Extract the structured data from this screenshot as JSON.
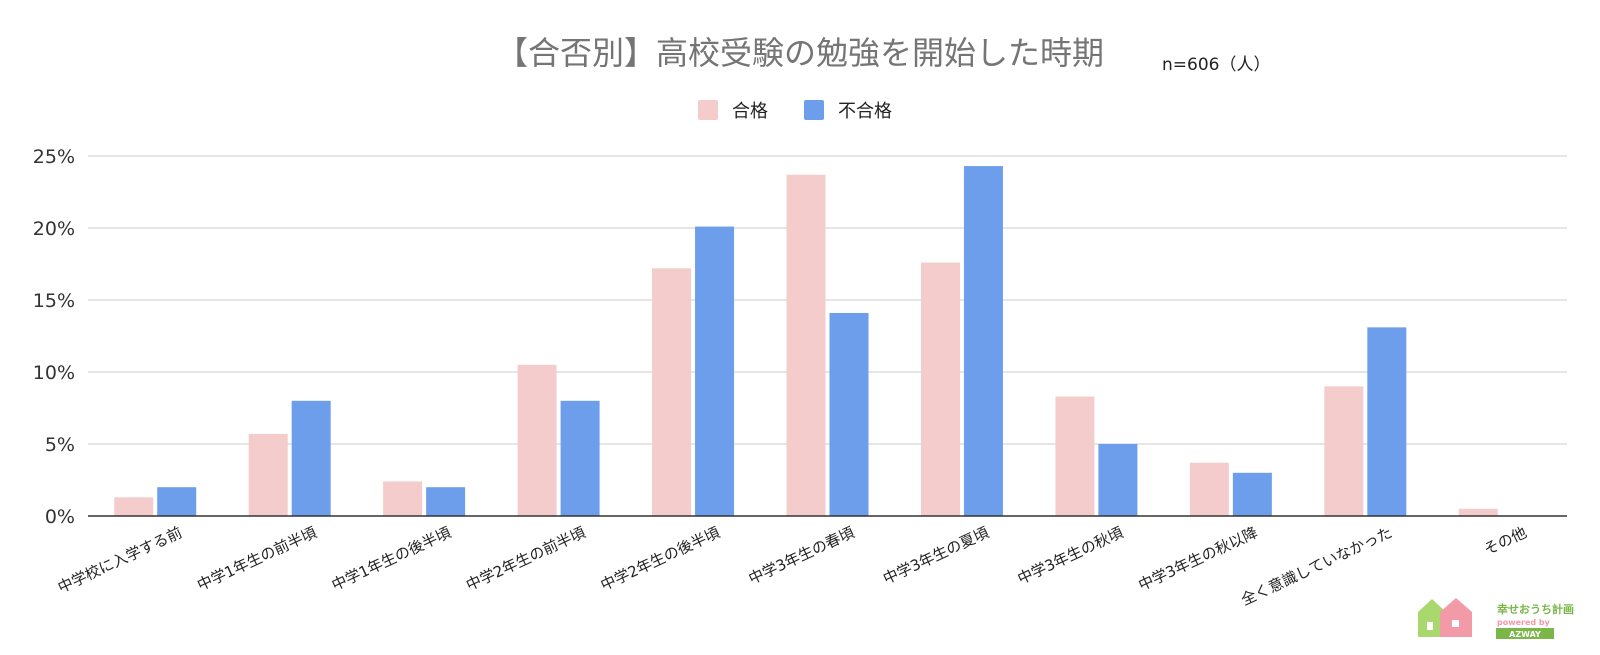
{
  "chart_data": {
    "type": "bar",
    "title": "【合否別】高校受験の勉強を開始した時期",
    "note": "n=606（人）",
    "categories": [
      "中学校に入学する前",
      "中学1年生の前半頃",
      "中学1年生の後半頃",
      "中学2年生の前半頃",
      "中学2年生の後半頃",
      "中学3年生の春頃",
      "中学3年生の夏頃",
      "中学3年生の秋頃",
      "中学3年生の秋以降",
      "全く意識していなかった",
      "その他"
    ],
    "series": [
      {
        "name": "合格",
        "color": "#f4cccc",
        "values": [
          1.3,
          5.7,
          2.4,
          10.5,
          17.2,
          23.7,
          17.6,
          8.3,
          3.7,
          9.0,
          0.5
        ]
      },
      {
        "name": "不合格",
        "color": "#6d9eeb",
        "values": [
          2.0,
          8.0,
          2.0,
          8.0,
          20.1,
          14.1,
          24.3,
          5.0,
          3.0,
          13.1,
          0
        ]
      }
    ],
    "yticks": [
      "0%",
      "5%",
      "10%",
      "15%",
      "20%",
      "25%"
    ],
    "ylim": [
      0,
      25
    ],
    "grid": true,
    "legend": "top-center"
  },
  "logo": {
    "line1": "幸せおうち計画",
    "line2": "powered by",
    "line3": "AZWAY"
  }
}
